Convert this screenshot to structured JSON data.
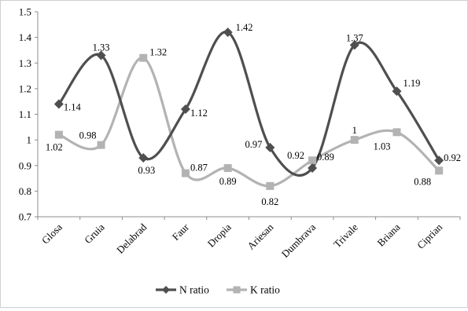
{
  "chart_data": {
    "type": "line",
    "categories": [
      "Glosa",
      "Gruia",
      "Delabrad",
      "Faur",
      "Dropia",
      "Ariesan",
      "Dumbrava",
      "Trivale",
      "Briana",
      "Ciprian"
    ],
    "series": [
      {
        "name": "N ratio",
        "values": [
          1.14,
          1.33,
          0.93,
          1.12,
          1.42,
          0.97,
          0.89,
          1.37,
          1.19,
          0.92
        ],
        "color": "#4f4f4f",
        "marker": "diamond"
      },
      {
        "name": "K ratio",
        "values": [
          1.02,
          0.98,
          1.32,
          0.87,
          0.89,
          0.82,
          0.92,
          1.0,
          1.03,
          0.88
        ],
        "color": "#b3b3b3",
        "marker": "square"
      }
    ],
    "data_labels": {
      "N ratio": [
        "1.14",
        "1.33",
        "0.93",
        "1.12",
        "1.42",
        "0.97",
        "0.89",
        "1.37",
        "1.19",
        "0.92"
      ],
      "K ratio": [
        "1.02",
        "0.98",
        "1.32",
        "0.87",
        "0.89",
        "0.82",
        "0.92",
        "1",
        "1.03",
        "0.88"
      ]
    },
    "ylim": [
      0.7,
      1.5
    ],
    "yticks": [
      "0.7",
      "0.8",
      "0.9",
      "1",
      "1.1",
      "1.2",
      "1.3",
      "1.4",
      "1.5"
    ],
    "xlabel": "",
    "ylabel": "",
    "title": "",
    "grid": false,
    "smooth": true,
    "legend_position": "bottom"
  }
}
